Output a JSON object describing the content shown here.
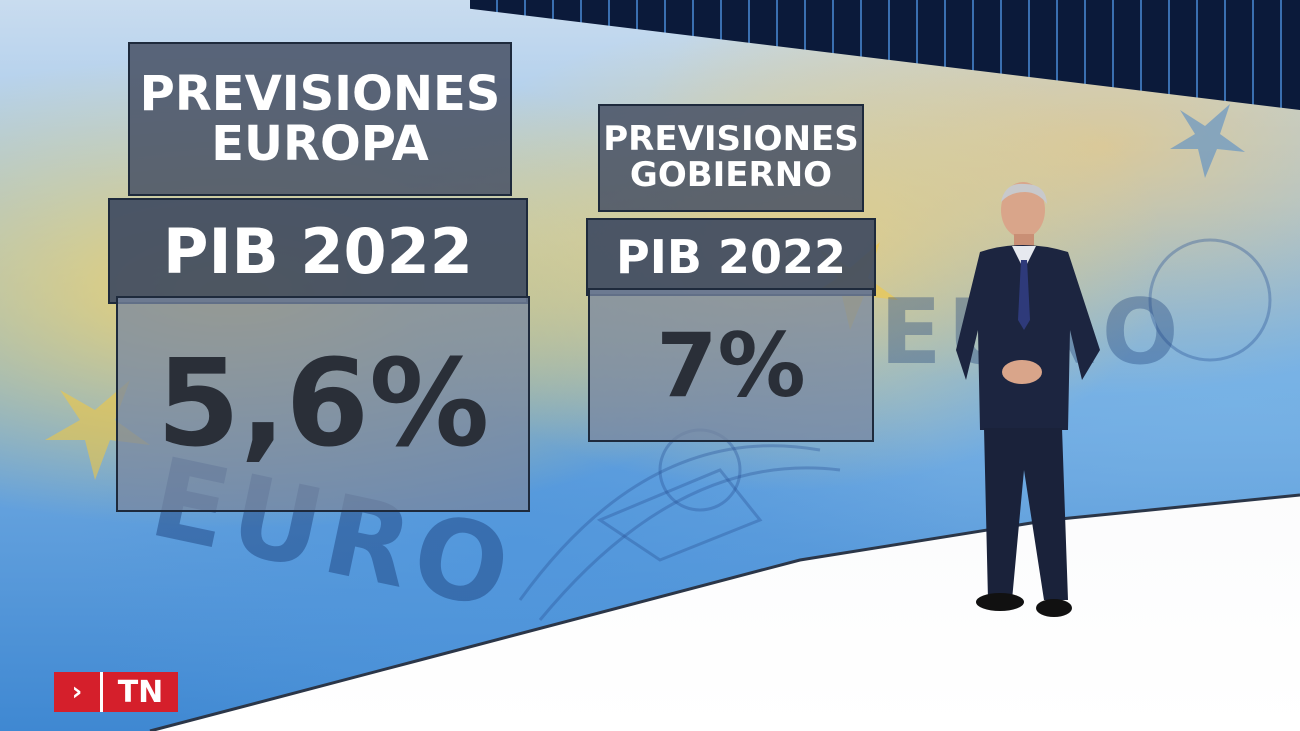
{
  "panels": {
    "europa": {
      "title_line1": "PREVISIONES",
      "title_line2": "EUROPA",
      "label": "PIB 2022",
      "value": "5,6%"
    },
    "gobierno": {
      "title_line1": "PREVISIONES",
      "title_line2": "GOBIERNO",
      "label": "PIB 2022",
      "value": "7%"
    }
  },
  "background": {
    "euro_text_1": "EURO",
    "euro_text_2": "EURO"
  },
  "logo": {
    "chevron": "›",
    "text": "TN",
    "color": "#d51f2b"
  }
}
